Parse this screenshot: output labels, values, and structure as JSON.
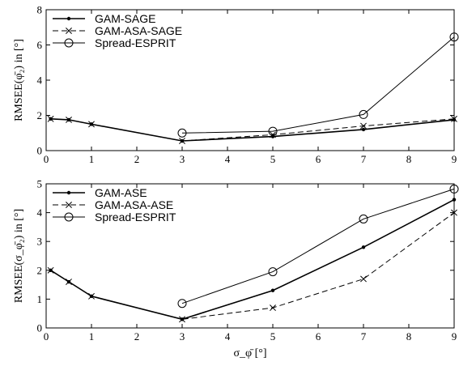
{
  "chart_data": [
    {
      "type": "line",
      "ylabel": "RMSEE(φ̄₂) in [°]",
      "xlabel": "",
      "xlim": [
        0,
        9
      ],
      "ylim": [
        0,
        8
      ],
      "xticks": [
        0,
        1,
        2,
        3,
        4,
        5,
        6,
        7,
        8,
        9
      ],
      "yticks": [
        0,
        2,
        4,
        6,
        8
      ],
      "grid": false,
      "legend_position": "top-left",
      "series": [
        {
          "name": "GAM-SAGE",
          "style": "solid",
          "marker": "dot",
          "x": [
            0.1,
            0.5,
            1,
            3,
            5,
            7,
            9
          ],
          "y": [
            1.8,
            1.75,
            1.5,
            0.55,
            0.8,
            1.2,
            1.75
          ]
        },
        {
          "name": "GAM-ASA-SAGE",
          "style": "dashed",
          "marker": "x",
          "x": [
            0.1,
            0.5,
            1,
            3,
            5,
            7,
            9
          ],
          "y": [
            1.8,
            1.75,
            1.5,
            0.55,
            0.9,
            1.4,
            1.8
          ]
        },
        {
          "name": "Spread-ESPRIT",
          "style": "solid",
          "marker": "circle",
          "x": [
            3,
            5,
            7,
            9
          ],
          "y": [
            1.0,
            1.1,
            2.05,
            6.45
          ]
        }
      ]
    },
    {
      "type": "line",
      "ylabel": "RMSEE(σ_φ̄₂) in [°]",
      "xlabel": "σ_φ̄ [°]",
      "xlim": [
        0,
        9
      ],
      "ylim": [
        0,
        5
      ],
      "xticks": [
        0,
        1,
        2,
        3,
        4,
        5,
        6,
        7,
        8,
        9
      ],
      "yticks": [
        0,
        1,
        2,
        3,
        4,
        5
      ],
      "grid": false,
      "legend_position": "top-left",
      "series": [
        {
          "name": "GAM-ASE",
          "style": "solid",
          "marker": "dot",
          "x": [
            0.1,
            0.5,
            1,
            3,
            5,
            7,
            9
          ],
          "y": [
            2.0,
            1.6,
            1.1,
            0.3,
            1.3,
            2.8,
            4.45
          ]
        },
        {
          "name": "GAM-ASA-ASE",
          "style": "dashed",
          "marker": "x",
          "x": [
            0.1,
            0.5,
            1,
            3,
            5,
            7,
            9
          ],
          "y": [
            2.0,
            1.6,
            1.1,
            0.3,
            0.7,
            1.7,
            4.0
          ]
        },
        {
          "name": "Spread-ESPRIT",
          "style": "solid",
          "marker": "circle",
          "x": [
            3,
            5,
            7,
            9
          ],
          "y": [
            0.85,
            1.95,
            3.78,
            4.82
          ]
        }
      ]
    }
  ]
}
